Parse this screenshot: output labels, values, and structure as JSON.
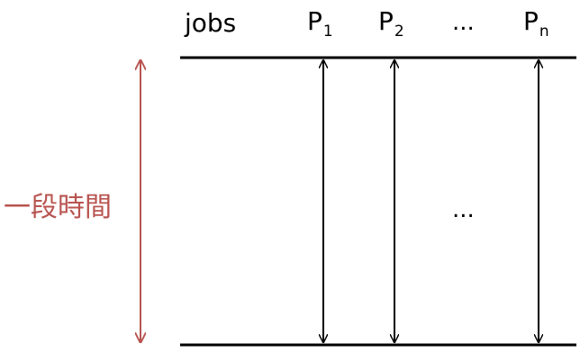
{
  "jobs_label": "jobs",
  "processes": [
    {
      "main": "P",
      "sub": "1"
    },
    {
      "main": "P",
      "sub": "2"
    },
    {
      "main": "P",
      "sub": "n"
    }
  ],
  "header_ellipsis": "...",
  "middle_ellipsis": "...",
  "time_label": "一段時間",
  "colors": {
    "line": "#000000",
    "time": "#b85450"
  }
}
